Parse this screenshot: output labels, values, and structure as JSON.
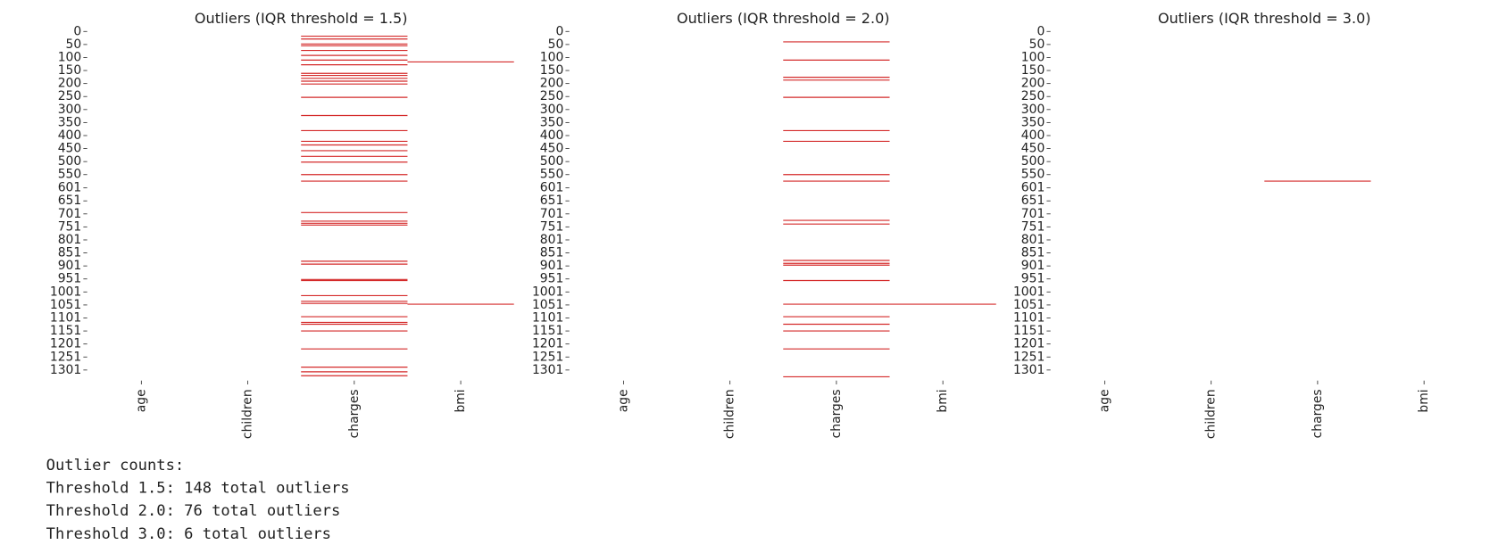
{
  "chart_data": [
    {
      "type": "heatmap",
      "title": "Outliers (IQR threshold = 1.5)",
      "color": "#d42a2a",
      "ylim": [
        0,
        1338
      ],
      "yticks": [
        0,
        50,
        100,
        150,
        200,
        250,
        300,
        350,
        400,
        450,
        500,
        550,
        601,
        651,
        701,
        751,
        801,
        851,
        901,
        951,
        1001,
        1051,
        1101,
        1151,
        1201,
        1251,
        1301
      ],
      "columns": [
        {
          "name": "age",
          "outlier_rows": []
        },
        {
          "name": "children",
          "outlier_rows": []
        },
        {
          "name": "charges",
          "outlier_rows": [
            18,
            29,
            48,
            55,
            73,
            92,
            110,
            128,
            161,
            169,
            180,
            191,
            202,
            253,
            323,
            381,
            422,
            436,
            458,
            480,
            502,
            550,
            575,
            696,
            729,
            737,
            744,
            883,
            894,
            953,
            957,
            1015,
            1037,
            1045,
            1096,
            1118,
            1125,
            1151,
            1220,
            1290,
            1308,
            1323
          ]
        },
        {
          "name": "bmi",
          "outlier_rows": [
            117,
            1048
          ]
        }
      ]
    },
    {
      "type": "heatmap",
      "title": "Outliers (IQR threshold = 2.0)",
      "color": "#d42a2a",
      "ylim": [
        0,
        1338
      ],
      "yticks": [
        0,
        50,
        100,
        150,
        200,
        250,
        300,
        350,
        400,
        450,
        500,
        550,
        601,
        651,
        701,
        751,
        801,
        851,
        901,
        951,
        1001,
        1051,
        1101,
        1151,
        1201,
        1251,
        1301
      ],
      "columns": [
        {
          "name": "age",
          "outlier_rows": []
        },
        {
          "name": "children",
          "outlier_rows": []
        },
        {
          "name": "charges",
          "outlier_rows": [
            40,
            110,
            176,
            187,
            253,
            381,
            422,
            550,
            575,
            726,
            740,
            880,
            891,
            898,
            957,
            1048,
            1096,
            1125,
            1151,
            1220,
            1327
          ]
        },
        {
          "name": "bmi",
          "outlier_rows": [
            1048
          ]
        }
      ]
    },
    {
      "type": "heatmap",
      "title": "Outliers (IQR threshold = 3.0)",
      "color": "#d42a2a",
      "ylim": [
        0,
        1338
      ],
      "yticks": [
        0,
        50,
        100,
        150,
        200,
        250,
        300,
        350,
        400,
        450,
        500,
        550,
        601,
        651,
        701,
        751,
        801,
        851,
        901,
        951,
        1001,
        1051,
        1101,
        1151,
        1201,
        1251,
        1301
      ],
      "columns": [
        {
          "name": "age",
          "outlier_rows": []
        },
        {
          "name": "children",
          "outlier_rows": []
        },
        {
          "name": "charges",
          "outlier_rows": [
            575
          ]
        },
        {
          "name": "bmi",
          "outlier_rows": []
        }
      ]
    }
  ],
  "output": [
    "Outlier counts:",
    "Threshold 1.5: 148 total outliers",
    "Threshold 2.0: 76 total outliers",
    "Threshold 3.0: 6 total outliers"
  ]
}
